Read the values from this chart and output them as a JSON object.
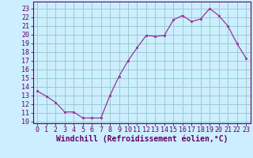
{
  "x": [
    0,
    1,
    2,
    3,
    4,
    5,
    6,
    7,
    8,
    9,
    10,
    11,
    12,
    13,
    14,
    15,
    16,
    17,
    18,
    19,
    20,
    21,
    22,
    23
  ],
  "y": [
    13.5,
    12.9,
    12.2,
    11.1,
    11.1,
    10.4,
    10.4,
    10.4,
    13.0,
    15.2,
    17.0,
    18.5,
    19.9,
    19.8,
    19.9,
    21.7,
    22.2,
    21.5,
    21.8,
    23.0,
    22.2,
    21.0,
    19.0,
    17.3
  ],
  "line_color": "#993399",
  "marker": "s",
  "marker_size": 2.0,
  "bg_color": "#cceeff",
  "grid_color": "#99cccc",
  "xlabel": "Windchill (Refroidissement éolien,°C)",
  "xlabel_fontsize": 7,
  "ylabel_ticks": [
    10,
    11,
    12,
    13,
    14,
    15,
    16,
    17,
    18,
    19,
    20,
    21,
    22,
    23
  ],
  "xlabel_ticks": [
    0,
    1,
    2,
    3,
    4,
    5,
    6,
    7,
    8,
    9,
    10,
    11,
    12,
    13,
    14,
    15,
    16,
    17,
    18,
    19,
    20,
    21,
    22,
    23
  ],
  "ylim": [
    9.8,
    23.8
  ],
  "xlim": [
    -0.5,
    23.5
  ],
  "tick_fontsize": 6.0,
  "spine_color": "#660066",
  "tick_color": "#660066",
  "label_color": "#660066"
}
